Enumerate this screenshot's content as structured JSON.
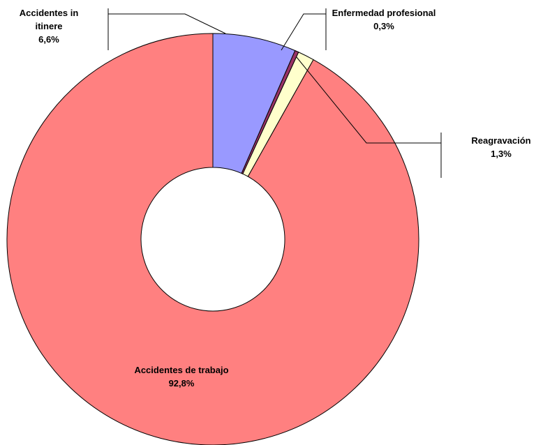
{
  "chart_data": {
    "type": "donut",
    "categories": [
      "Accidentes in itinere",
      "Enfermedad profesional",
      "Reagravación",
      "Accidentes de trabajo"
    ],
    "values": [
      6.6,
      0.3,
      1.3,
      92.8
    ],
    "value_labels": [
      "6,6%",
      "0,3%",
      "1,3%",
      "92,8%"
    ],
    "colors": [
      "#9999ff",
      "#993366",
      "#ffffcc",
      "#ff8080"
    ]
  }
}
